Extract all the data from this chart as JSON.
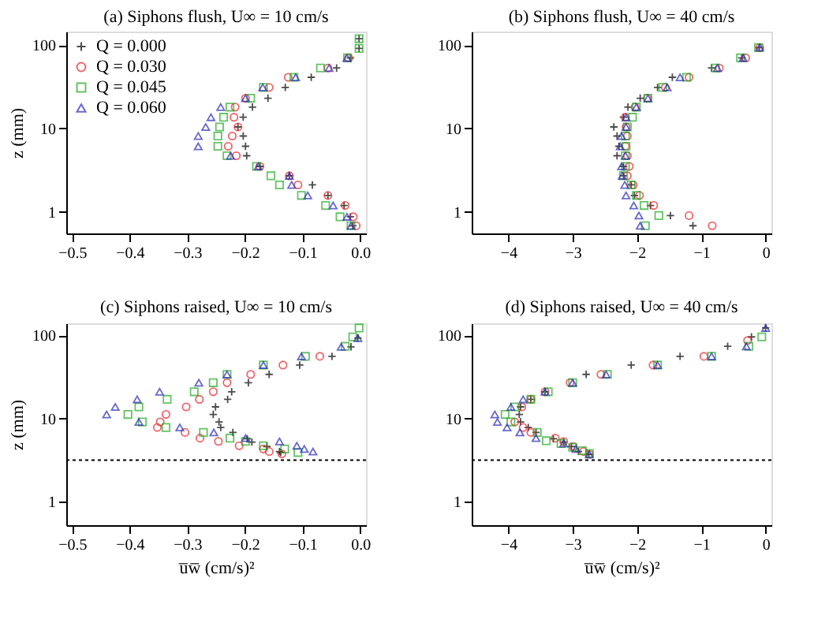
{
  "chart_data": [
    {
      "type": "scatter",
      "title": "(a) Siphons flush, U∞ = 10 cm/s",
      "ylabel": "z (mm)",
      "log": "y",
      "grid": false,
      "legend": "top left",
      "xlim": [
        -0.51,
        0.01
      ],
      "xticks": [
        -0.5,
        -0.4,
        -0.3,
        -0.2,
        -0.1,
        {
          "value": 0,
          "label": "0.0"
        }
      ],
      "ylim": [
        0.55,
        145
      ],
      "yticks": [
        1,
        10,
        100
      ],
      "series": [
        {
          "name": "Q = 0.000",
          "color": "#000000",
          "marker": "cross",
          "x": [
            -0.002,
            -0.002,
            -0.017,
            -0.041,
            -0.085,
            -0.13,
            -0.16,
            -0.187,
            -0.203,
            -0.212,
            -0.203,
            -0.199,
            -0.197,
            -0.174,
            -0.123,
            -0.083,
            -0.056,
            -0.028,
            -0.017,
            -0.013
          ],
          "values": [
            119,
            91,
            70,
            53,
            41,
            31,
            23,
            18,
            13.6,
            10.4,
            8.1,
            6.1,
            4.7,
            3.5,
            2.7,
            2.1,
            1.57,
            1.19,
            0.87,
            0.68
          ]
        },
        {
          "name": "Q = 0.030",
          "color": "#e8262c",
          "marker": "circle",
          "x": [
            -0.02,
            -0.056,
            -0.125,
            -0.158,
            -0.199,
            -0.217,
            -0.219,
            -0.212,
            -0.222,
            -0.229,
            -0.215,
            -0.174,
            -0.123,
            -0.108,
            -0.056,
            -0.026,
            -0.012,
            -0.007
          ],
          "values": [
            70,
            53,
            41,
            31,
            23,
            18,
            13.6,
            10.4,
            8.1,
            6.1,
            4.7,
            3.5,
            2.7,
            2.1,
            1.57,
            1.19,
            0.87,
            0.68
          ]
        },
        {
          "name": "Q = 0.045",
          "color": "#22aa22",
          "marker": "square",
          "x": [
            -0.002,
            -0.002,
            -0.022,
            -0.069,
            -0.115,
            -0.168,
            -0.19,
            -0.226,
            -0.237,
            -0.244,
            -0.247,
            -0.247,
            -0.231,
            -0.18,
            -0.155,
            -0.14,
            -0.102,
            -0.06,
            -0.035,
            -0.016
          ],
          "values": [
            119,
            91,
            70,
            53,
            41,
            31,
            23,
            18,
            13.6,
            10.4,
            8.1,
            6.1,
            4.7,
            3.5,
            2.7,
            2.1,
            1.57,
            1.19,
            0.87,
            0.68
          ]
        },
        {
          "name": "Q = 0.060",
          "color": "#2a2ab8",
          "marker": "triangle",
          "x": [
            -0.023,
            -0.054,
            -0.112,
            -0.169,
            -0.199,
            -0.242,
            -0.259,
            -0.268,
            -0.281,
            -0.281,
            -0.225,
            -0.177,
            -0.123,
            -0.119,
            -0.091,
            -0.047,
            -0.023,
            -0.016
          ],
          "values": [
            70,
            53,
            41,
            31,
            23,
            18,
            13.6,
            10.4,
            8.1,
            6.1,
            4.7,
            3.5,
            2.7,
            2.1,
            1.57,
            1.19,
            0.87,
            0.68
          ]
        }
      ]
    },
    {
      "type": "scatter",
      "title": "(b) Siphons flush, U∞ = 40 cm/s",
      "log": "y",
      "grid": false,
      "xlim": [
        -4.57,
        0.09
      ],
      "xticks": [
        -4,
        -3,
        -2,
        -1,
        0
      ],
      "ylim": [
        0.55,
        145
      ],
      "yticks": [
        1,
        10,
        100
      ],
      "series": [
        {
          "color": "#000000",
          "marker": "cross",
          "x": [
            -0.1,
            -0.37,
            -0.84,
            -1.45,
            -1.68,
            -1.95,
            -2.14,
            -2.21,
            -2.36,
            -2.31,
            -2.28,
            -2.31,
            -2.21,
            -2.21,
            -2.09,
            -2.04,
            -1.79,
            -1.48,
            -1.13
          ],
          "values": [
            93,
            70,
            53,
            41,
            31,
            23,
            18,
            13.6,
            10.4,
            8.1,
            6.1,
            4.7,
            3.5,
            2.7,
            2.1,
            1.57,
            1.19,
            0.9,
            0.68
          ]
        },
        {
          "color": "#e8262c",
          "marker": "circle",
          "x": [
            -0.09,
            -0.31,
            -0.72,
            -1.19,
            -1.56,
            -1.84,
            -2.03,
            -2.18,
            -2.17,
            -2.15,
            -2.18,
            -2.15,
            -2.12,
            -2.15,
            -2.06,
            -1.96,
            -1.74,
            -1.19,
            -0.83
          ],
          "values": [
            93,
            70,
            53,
            41,
            31,
            23,
            18,
            13.6,
            10.4,
            8.1,
            6.1,
            4.7,
            3.5,
            2.7,
            2.1,
            1.57,
            1.19,
            0.9,
            0.68
          ]
        },
        {
          "color": "#22aa22",
          "marker": "square",
          "x": [
            -0.11,
            -0.39,
            -0.78,
            -1.23,
            -1.6,
            -1.83,
            -2.01,
            -2.07,
            -2.15,
            -2.18,
            -2.17,
            -2.18,
            -2.18,
            -2.21,
            -2.09,
            -2.01,
            -1.89,
            -1.66,
            -1.87
          ],
          "values": [
            93,
            70,
            53,
            41,
            31,
            23,
            18,
            13.6,
            10.4,
            8.1,
            6.1,
            4.7,
            3.5,
            2.7,
            2.1,
            1.57,
            1.19,
            0.9,
            0.68
          ]
        },
        {
          "color": "#2a2ab8",
          "marker": "triangle",
          "x": [
            -0.09,
            -0.35,
            -0.75,
            -1.33,
            -1.53,
            -1.83,
            -2.01,
            -2.17,
            -2.17,
            -2.24,
            -2.26,
            -2.18,
            -2.24,
            -2.23,
            -2.19,
            -2.17,
            -2.05,
            -1.97,
            -1.95
          ],
          "values": [
            93,
            70,
            53,
            41,
            31,
            23,
            18,
            13.6,
            10.4,
            8.1,
            6.1,
            4.7,
            3.5,
            2.7,
            2.1,
            1.57,
            1.19,
            0.9,
            0.68
          ]
        }
      ]
    },
    {
      "type": "scatter",
      "title": "(c) Siphons raised, U∞ = 10 cm/s",
      "xlabel": "u̅w̅ (cm/s)²",
      "ylabel": "z (mm)",
      "log": "y",
      "grid": false,
      "xlim": [
        -0.51,
        0.01
      ],
      "xticks": [
        -0.5,
        -0.4,
        -0.3,
        -0.2,
        -0.1,
        {
          "value": 0,
          "label": "0.0"
        }
      ],
      "ylim": [
        0.52,
        140
      ],
      "yticks": [
        1,
        10,
        100
      ],
      "ref_lines": [
        {
          "axis": "y",
          "value": 3.15,
          "line_style": "dotted",
          "color": "#000000"
        }
      ],
      "series": [
        {
          "color": "#000000",
          "marker": "cross",
          "x": [
            -0.004,
            -0.016,
            -0.049,
            -0.105,
            -0.158,
            -0.194,
            -0.223,
            -0.23,
            -0.251,
            -0.255,
            -0.245,
            -0.242,
            -0.221,
            -0.196,
            -0.188,
            -0.162,
            -0.14,
            -0.138
          ],
          "values": [
            93,
            73,
            56,
            44,
            34,
            27,
            21,
            17,
            13.8,
            11.2,
            9.1,
            7.8,
            6.8,
            5.7,
            5.2,
            4.6,
            4.0,
            3.9
          ]
        },
        {
          "color": "#e8262c",
          "marker": "circle",
          "x": [
            -0.07,
            -0.134,
            -0.19,
            -0.231,
            -0.255,
            -0.279,
            -0.302,
            -0.337,
            -0.347,
            -0.352,
            -0.304,
            -0.278,
            -0.246,
            -0.21,
            -0.168,
            -0.158,
            -0.136
          ],
          "values": [
            56,
            44,
            34,
            27,
            21,
            17,
            13.8,
            11.2,
            9.1,
            7.8,
            6.8,
            5.8,
            5.3,
            4.7,
            4.3,
            4.0,
            3.75
          ]
        },
        {
          "color": "#22aa22",
          "marker": "square",
          "x": [
            -0.002,
            -0.013,
            -0.026,
            -0.095,
            -0.168,
            -0.231,
            -0.255,
            -0.288,
            -0.335,
            -0.384,
            -0.403,
            -0.378,
            -0.337,
            -0.272,
            -0.226,
            -0.199,
            -0.168,
            -0.131,
            -0.108
          ],
          "values": [
            123,
            96,
            74,
            56,
            44,
            34,
            27,
            21,
            17,
            13.8,
            11.2,
            9.1,
            7.8,
            6.8,
            5.8,
            5.3,
            4.7,
            4.3,
            3.9
          ]
        },
        {
          "color": "#2a2ab8",
          "marker": "triangle",
          "x": [
            -0.004,
            -0.033,
            -0.102,
            -0.168,
            -0.231,
            -0.28,
            -0.348,
            -0.387,
            -0.425,
            -0.44,
            -0.384,
            -0.313,
            -0.254,
            -0.199,
            -0.14,
            -0.11,
            -0.097,
            -0.082
          ],
          "values": [
            93,
            73,
            56,
            44,
            34,
            27,
            21,
            17,
            13.8,
            11.2,
            9.1,
            7.8,
            6.8,
            5.8,
            5.3,
            4.7,
            4.3,
            4.0
          ]
        }
      ]
    },
    {
      "type": "scatter",
      "title": "(d) Siphons raised, U∞ = 40 cm/s",
      "xlabel": "u̅w̅ (cm/s)²",
      "log": "y",
      "grid": false,
      "xlim": [
        -4.57,
        0.09
      ],
      "xticks": [
        -4,
        -3,
        -2,
        -1,
        0
      ],
      "ylim": [
        0.52,
        140
      ],
      "yticks": [
        1,
        10,
        100
      ],
      "ref_lines": [
        {
          "axis": "y",
          "value": 3.15,
          "line_style": "dotted",
          "color": "#000000"
        }
      ],
      "series": [
        {
          "color": "#000000",
          "marker": "cross",
          "x": [
            0,
            -0.22,
            -0.59,
            -1.33,
            -2.09,
            -2.79,
            -3.43,
            -3.65,
            -3.81,
            -3.83,
            -3.81,
            -3.69,
            -3.57,
            -3.3,
            -3.14,
            -3.02,
            -2.91,
            -2.75
          ],
          "values": [
            123,
            96,
            74,
            56,
            44,
            34,
            21,
            17,
            13.8,
            11.2,
            9.1,
            7.8,
            6.8,
            5.7,
            5.2,
            4.6,
            4.0,
            3.7
          ]
        },
        {
          "color": "#e8262c",
          "marker": "circle",
          "x": [
            -0.28,
            -0.96,
            -1.75,
            -2.56,
            -3.04,
            -3.43,
            -3.65,
            -3.79,
            -3.9,
            -3.77,
            -3.65,
            -3.27,
            -3.14,
            -2.99,
            -2.83,
            -2.74
          ],
          "values": [
            87,
            56,
            44,
            34,
            27,
            21,
            17,
            13.8,
            9.1,
            7.8,
            6.8,
            5.8,
            5.3,
            4.6,
            4.0,
            3.7
          ]
        },
        {
          "color": "#22aa22",
          "marker": "square",
          "x": [
            -0.06,
            -0.26,
            -0.84,
            -1.68,
            -2.46,
            -3.0,
            -3.38,
            -3.65,
            -3.9,
            -4.05,
            -3.96,
            -3.55,
            -3.41,
            -3.18,
            -3.0,
            -2.85,
            -2.74
          ],
          "values": [
            96,
            74,
            56,
            44,
            34,
            27,
            21,
            17,
            13.8,
            11.2,
            9.1,
            6.8,
            5.4,
            5.0,
            4.5,
            4.1,
            3.8
          ]
        },
        {
          "color": "#2a2ab8",
          "marker": "triangle",
          "x": [
            0,
            -0.3,
            -0.84,
            -1.68,
            -2.48,
            -3.0,
            -3.43,
            -3.77,
            -3.96,
            -4.21,
            -4.17,
            -4.02,
            -3.82,
            -3.57,
            -3.14,
            -2.95,
            -2.74
          ],
          "values": [
            123,
            74,
            56,
            44,
            34,
            27,
            21,
            17,
            13.8,
            11.2,
            9.1,
            7.8,
            6.8,
            5.8,
            5.0,
            4.3,
            3.7
          ]
        }
      ]
    }
  ]
}
